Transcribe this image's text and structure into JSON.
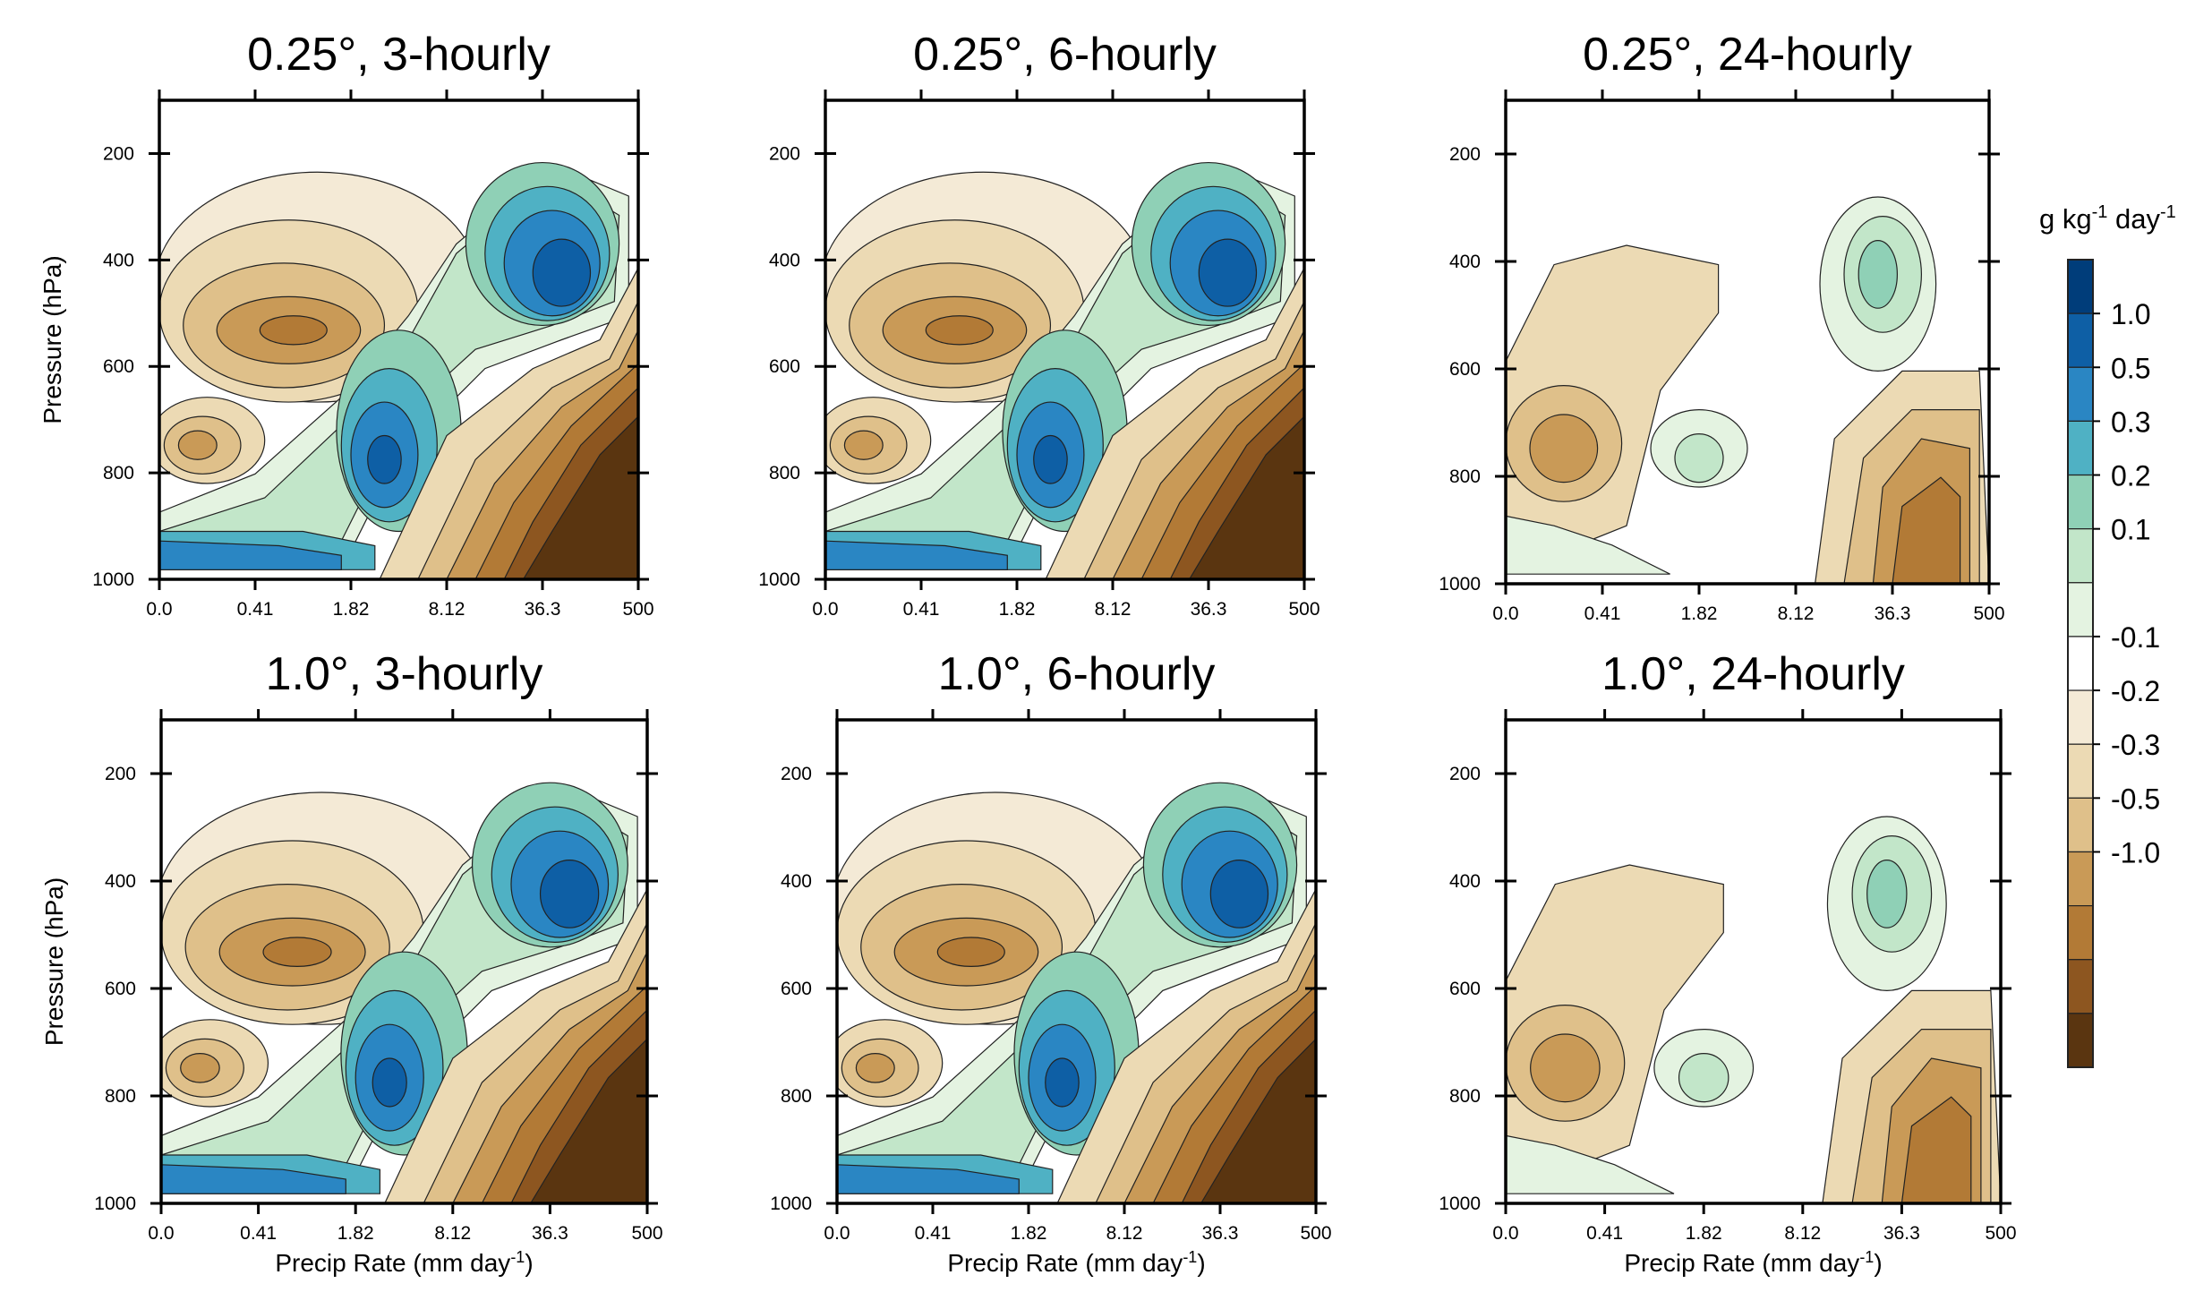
{
  "chart_data": {
    "type": "heatmap",
    "layout": "2x3 panel grid",
    "x_ticks": [
      "0.0",
      "0.41",
      "1.82",
      "8.12",
      "36.3",
      "500"
    ],
    "y_ticks": [
      "200",
      "400",
      "600",
      "800",
      "1000"
    ],
    "ylim": [
      1000,
      100
    ],
    "grid": false,
    "colorbar": {
      "unit": "g kg",
      "unit_exp1": "-1",
      "unit_mid": " day",
      "unit_exp2": "-1",
      "labels": [
        "1.0",
        "0.5",
        "0.3",
        "0.2",
        "0.1",
        "-0.1",
        "-0.2",
        "-0.3",
        "-0.5",
        "-1.0"
      ],
      "levels": [
        {
          "bin": "> 1.0",
          "color": "#003d7a"
        },
        {
          "bin": "0.5 to 1.0",
          "color": "#0e5fa5"
        },
        {
          "bin": "0.3 to 0.5",
          "color": "#2a86c3"
        },
        {
          "bin": "0.2 to 0.3",
          "color": "#4fb1c4"
        },
        {
          "bin": "0.1 to 0.2",
          "color": "#8fd0b6"
        },
        {
          "bin": "0.05 to 0.1",
          "color": "#c2e6c9"
        },
        {
          "bin": "0 to 0.05",
          "color": "#e4f3e1"
        },
        {
          "bin": "~0",
          "color": "#ffffff"
        },
        {
          "bin": "-0.05 to 0",
          "color": "#f4ead6"
        },
        {
          "bin": "-0.1 to -0.05",
          "color": "#ecdab4"
        },
        {
          "bin": "-0.2 to -0.1",
          "color": "#dfc08a"
        },
        {
          "bin": "-0.3 to -0.2",
          "color": "#c99a57"
        },
        {
          "bin": "-0.5 to -0.3",
          "color": "#b27a36"
        },
        {
          "bin": "-1.0 to -0.5",
          "color": "#8d5620"
        },
        {
          "bin": "< -1.0",
          "color": "#5a3510"
        }
      ]
    },
    "panels": [
      {
        "title": "0.25°, 3-hourly",
        "ylabel": "Pressure (hPa)",
        "xlabel": "",
        "style": "full"
      },
      {
        "title": "0.25°, 6-hourly",
        "ylabel": "",
        "xlabel": "",
        "style": "full"
      },
      {
        "title": "0.25°, 24-hourly",
        "ylabel": "",
        "xlabel": "",
        "style": "sparse"
      },
      {
        "title": "1.0°, 3-hourly",
        "ylabel": "Pressure (hPa)",
        "xlabel": "Precip Rate (mm day",
        "xlabel_exp": "-1",
        "xlabel_end": ")",
        "style": "full"
      },
      {
        "title": "1.0°, 6-hourly",
        "ylabel": "",
        "xlabel": "Precip Rate (mm day",
        "xlabel_exp": "-1",
        "xlabel_end": ")",
        "style": "full"
      },
      {
        "title": "1.0°, 24-hourly",
        "ylabel": "",
        "xlabel": "Precip Rate (mm day",
        "xlabel_exp": "-1",
        "xlabel_end": ")",
        "style": "sparse"
      }
    ]
  }
}
